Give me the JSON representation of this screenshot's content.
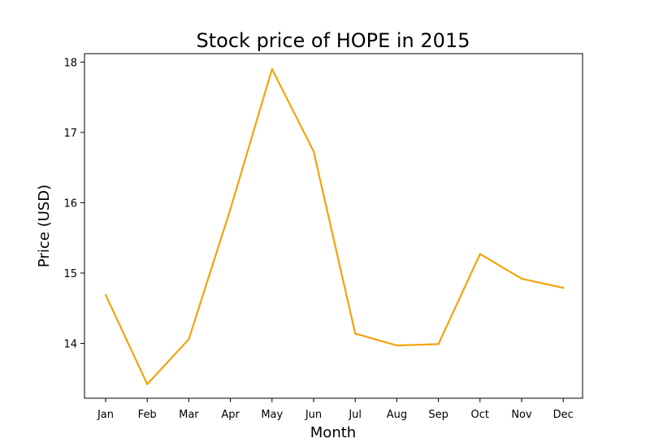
{
  "chart_data": {
    "type": "line",
    "title": "Stock price of HOPE in 2015",
    "xlabel": "Month",
    "ylabel": "Price (USD)",
    "categories": [
      "Jan",
      "Feb",
      "Mar",
      "Apr",
      "May",
      "Jun",
      "Jul",
      "Aug",
      "Sep",
      "Oct",
      "Nov",
      "Dec"
    ],
    "values": [
      14.69,
      13.42,
      14.06,
      15.91,
      17.9,
      16.73,
      14.14,
      13.97,
      13.99,
      15.27,
      14.92,
      14.79
    ],
    "ylim": [
      13.22,
      18.12
    ],
    "yticks": [
      14,
      15,
      16,
      17,
      18
    ],
    "line_color": "#f5a30a",
    "grid": false,
    "legend": "none"
  }
}
